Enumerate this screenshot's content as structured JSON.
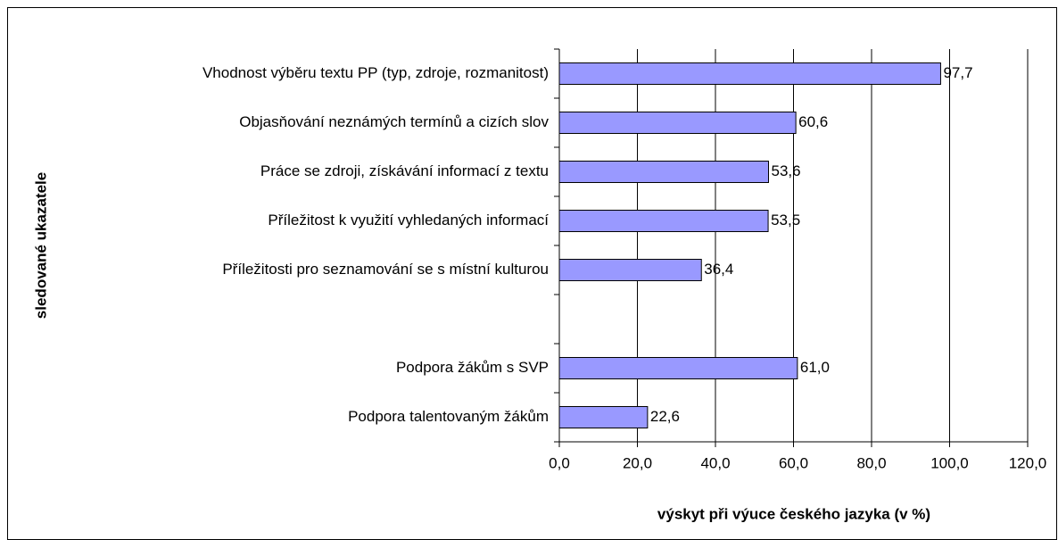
{
  "chart_data": {
    "type": "bar",
    "orientation": "horizontal",
    "categories": [
      "Vhodnost výběru textu PP (typ, zdroje, rozmanitost)",
      "Objasňování neznámých termínů a cizích slov",
      "Práce se zdroji, získávání informací z textu",
      "Příležitost k využití vyhledaných informací",
      "Příležitosti pro seznamování se s místní kulturou",
      null,
      "Podpora žákům s SVP",
      "Podpora talentovaným žákům"
    ],
    "values": [
      97.7,
      60.6,
      53.6,
      53.5,
      36.4,
      null,
      61.0,
      22.6
    ],
    "value_labels": [
      "97,7",
      "60,6",
      "53,6",
      "53,5",
      "36,4",
      null,
      "61,0",
      "22,6"
    ],
    "color": "#9999ff",
    "xlim": [
      0,
      120
    ],
    "xticks": [
      {
        "value": 0,
        "label": "0,0"
      },
      {
        "value": 20,
        "label": "20,0"
      },
      {
        "value": 40,
        "label": "40,0"
      },
      {
        "value": 60,
        "label": "60,0"
      },
      {
        "value": 80,
        "label": "80,0"
      },
      {
        "value": 100,
        "label": "100,0"
      },
      {
        "value": 120,
        "label": "120,0"
      }
    ],
    "grid": true,
    "xlabel": "výskyt při výuce českého jazyka (v %)",
    "ylabel": "sledované ukazatele"
  }
}
